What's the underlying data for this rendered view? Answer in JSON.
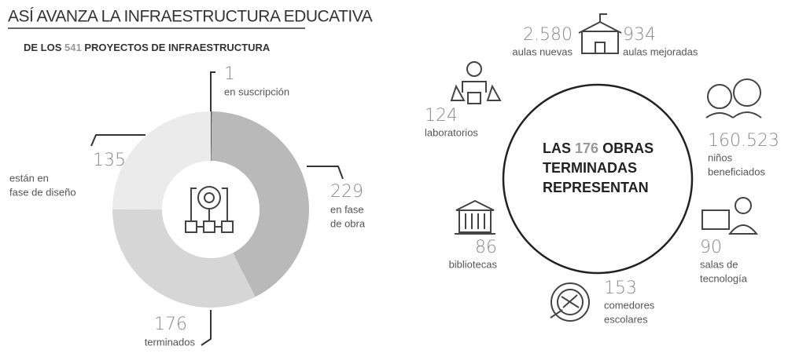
{
  "chart_data": {
    "type": "pie",
    "title": "ASÍ AVANZA LA INFRAESTRUCTURA EDUCATIVA",
    "subtitle_parts": [
      "DE LOS",
      "541",
      "PROYECTOS DE INFRAESTRUCTURA"
    ],
    "categories": [
      [
        "en suscripción"
      ],
      [
        "en fase",
        "de obra"
      ],
      [
        "terminados"
      ],
      [
        "están en",
        "fase de diseño"
      ]
    ],
    "values": [
      1,
      229,
      176,
      135
    ],
    "colors": [
      "#555555",
      "#b9b9b9",
      "#d6d6d6",
      "#ebebeb"
    ]
  },
  "center": {
    "parts": [
      "LAS",
      "176",
      "OBRAS"
    ],
    "lines": [
      "TERMINADAS",
      "REPRESENTAN"
    ]
  },
  "outcomes": [
    {
      "value": "2.580",
      "label": [
        "aulas nuevas"
      ]
    },
    {
      "value": "934",
      "label": [
        "aulas mejoradas"
      ]
    },
    {
      "value": "124",
      "label": [
        "laboratorios"
      ]
    },
    {
      "value": "160.523",
      "label": [
        "niños",
        "beneficiados"
      ]
    },
    {
      "value": "86",
      "label": [
        "bibliotecas"
      ]
    },
    {
      "value": "90",
      "label": [
        "salas de",
        "tecnología"
      ]
    },
    {
      "value": "153",
      "label": [
        "comedores",
        "escolares"
      ]
    }
  ]
}
